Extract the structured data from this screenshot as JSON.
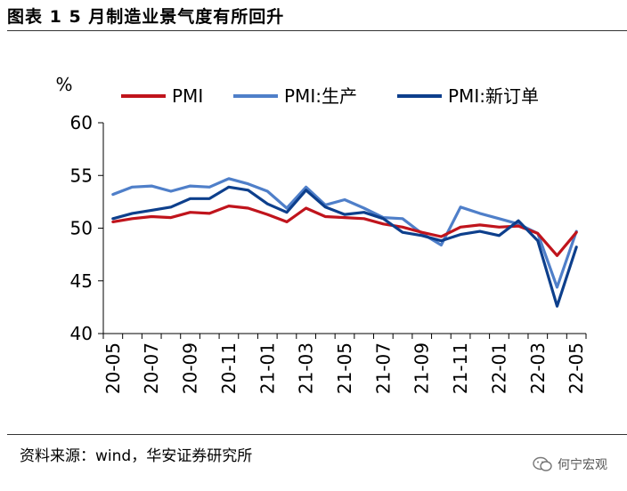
{
  "header": {
    "title": "图表 1 5 月制造业景气度有所回升"
  },
  "footer": {
    "source": "资料来源：wind，华安证券研究所"
  },
  "watermark": {
    "text": "何宁宏观",
    "icon": "wechat-icon"
  },
  "chart_data": {
    "type": "line",
    "title": "",
    "ylabel": "%",
    "xlabel": "",
    "ylim": [
      40,
      60
    ],
    "yticks": [
      "40",
      "45",
      "50",
      "55",
      "60"
    ],
    "x": [
      "20-05",
      "20-06",
      "20-07",
      "20-08",
      "20-09",
      "20-10",
      "20-11",
      "20-12",
      "21-01",
      "21-02",
      "21-03",
      "21-04",
      "21-05",
      "21-06",
      "21-07",
      "21-08",
      "21-09",
      "21-10",
      "21-11",
      "21-12",
      "22-01",
      "22-02",
      "22-03",
      "22-04",
      "22-05"
    ],
    "xtick_labels": [
      "20-05",
      "20-07",
      "20-09",
      "20-11",
      "21-01",
      "21-03",
      "21-05",
      "21-07",
      "21-09",
      "21-11",
      "22-01",
      "22-03",
      "22-05"
    ],
    "legend": "top",
    "series": [
      {
        "name": "PMI",
        "color": "#c0141c",
        "values": [
          50.6,
          50.9,
          51.1,
          51.0,
          51.5,
          51.4,
          52.1,
          51.9,
          51.3,
          50.6,
          51.9,
          51.1,
          51.0,
          50.9,
          50.4,
          50.1,
          49.6,
          49.2,
          50.1,
          50.3,
          50.1,
          50.2,
          49.5,
          47.4,
          49.6
        ]
      },
      {
        "name": "PMI:生产",
        "color": "#4f7fc9",
        "values": [
          53.2,
          53.9,
          54.0,
          53.5,
          54.0,
          53.9,
          54.7,
          54.2,
          53.5,
          51.9,
          53.9,
          52.2,
          52.7,
          51.9,
          51.0,
          50.9,
          49.5,
          48.4,
          52.0,
          51.4,
          50.9,
          50.4,
          49.5,
          44.4,
          49.7
        ]
      },
      {
        "name": "PMI:新订单",
        "color": "#0d3f8c",
        "values": [
          50.9,
          51.4,
          51.7,
          52.0,
          52.8,
          52.8,
          53.9,
          53.6,
          52.3,
          51.5,
          53.6,
          52.0,
          51.3,
          51.5,
          50.9,
          49.6,
          49.3,
          48.8,
          49.4,
          49.7,
          49.3,
          50.7,
          48.8,
          42.6,
          48.2
        ]
      }
    ]
  }
}
